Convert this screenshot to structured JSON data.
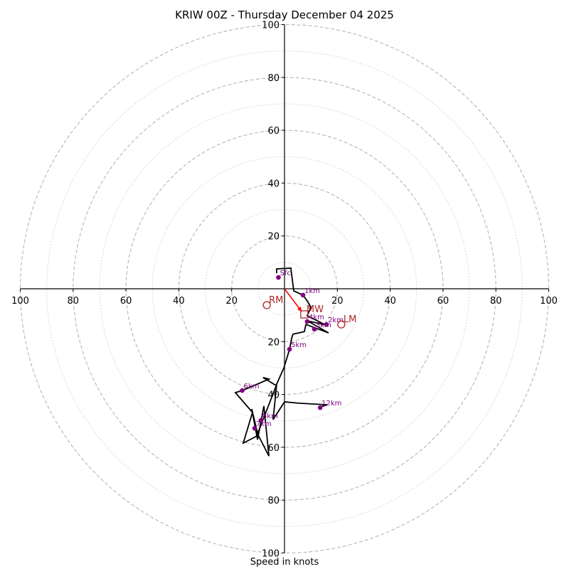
{
  "chart_data": {
    "type": "line",
    "subtype": "hodograph",
    "title": "KRIW 00Z - Thursday December 04 2025",
    "xlabel": "Speed in knots",
    "ylabel": "",
    "range": [
      0,
      100
    ],
    "rings_major": [
      20,
      40,
      60,
      80,
      100
    ],
    "rings_minor": [
      10,
      30,
      50,
      70,
      90
    ],
    "tick_labels": [
      "100",
      "80",
      "60",
      "40",
      "20",
      "20",
      "40",
      "60",
      "80",
      "100"
    ],
    "tick_values": [
      -100,
      -80,
      -60,
      -40,
      -20,
      20,
      40,
      60,
      80,
      100
    ],
    "units": "knots",
    "hodograph_line": {
      "u": [
        -3.0,
        -3.0,
        2.4,
        3.5,
        7.0,
        8.9,
        10.0,
        8.6,
        15.6,
        8.6,
        16.7,
        8.1,
        7.5,
        3.2,
        2.7,
        1.9,
        -0.3,
        -3.2,
        -8.1,
        -5.9,
        -15.9,
        -18.6,
        -12.1,
        -15.6,
        -10.0,
        -12.4,
        -10.2,
        -7.8,
        -5.9,
        -10.2,
        -3.0,
        -4.3,
        0.0,
        5.4,
        16.2,
        12.7
      ],
      "v": [
        5.9,
        7.5,
        7.8,
        -0.8,
        -2.4,
        -5.1,
        -7.0,
        -10.2,
        -13.7,
        -12.1,
        -16.7,
        -13.5,
        -16.2,
        -17.2,
        -18.8,
        -22.9,
        -30.1,
        -36.6,
        -33.6,
        -34.2,
        -38.5,
        -39.3,
        -46.8,
        -58.4,
        -55.5,
        -45.5,
        -57.1,
        -44.4,
        -63.3,
        -54.9,
        -36.3,
        -49.5,
        -42.8,
        -43.3,
        -43.9,
        -45.0
      ]
    },
    "height_markers": [
      {
        "label": "Sfc",
        "u": -2.3,
        "v": 4.3
      },
      {
        "label": "1km",
        "u": 7.0,
        "v": -2.4
      },
      {
        "label": "2km",
        "u": 15.9,
        "v": -13.5
      },
      {
        "label": "3km",
        "u": 11.3,
        "v": -15.3
      },
      {
        "label": "4km",
        "u": 8.6,
        "v": -12.4
      },
      {
        "label": "5km",
        "u": 1.9,
        "v": -22.9
      },
      {
        "label": "6km",
        "u": -16.0,
        "v": -38.5
      },
      {
        "label": "7km",
        "u": -11.3,
        "v": -52.8
      },
      {
        "label": "8km",
        "u": -8.9,
        "v": -49.8
      },
      {
        "label": "12km",
        "u": 13.5,
        "v": -45.0
      }
    ],
    "storm_motion": [
      {
        "label": "RM",
        "u": -6.7,
        "v": -6.2,
        "marker": "circle"
      },
      {
        "label": "MW",
        "u": 7.5,
        "v": -9.7,
        "marker": "square"
      },
      {
        "label": "LM",
        "u": 21.5,
        "v": -13.5,
        "marker": "circle"
      }
    ],
    "mean_wind_vector": {
      "u": 6.5,
      "v": -8.6
    },
    "colors": {
      "hodograph": "#000000",
      "markers": "#800080",
      "storm": "#b22222",
      "vector": "#ff0000",
      "rings": "#bbbbbb",
      "axes": "#000000"
    }
  }
}
